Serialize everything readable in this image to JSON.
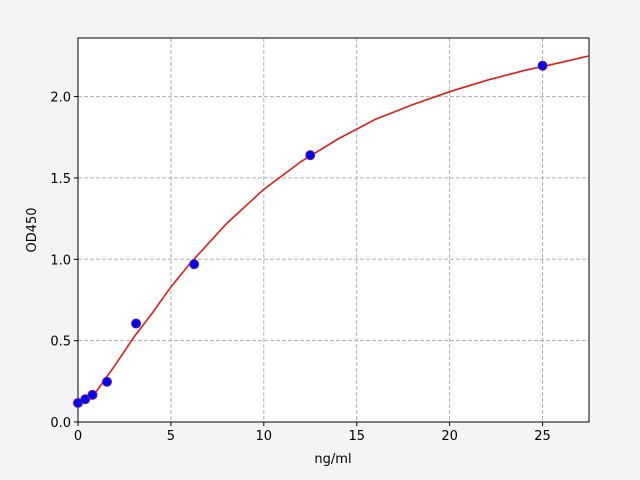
{
  "chart_data": {
    "type": "scatter",
    "xlabel": "ng/ml",
    "ylabel": "OD450",
    "xlim": [
      0,
      27.5
    ],
    "ylim": [
      0,
      2.36
    ],
    "xticks": [
      0,
      5,
      10,
      15,
      20,
      25
    ],
    "yticks": [
      {
        "value": 0,
        "label": "0.0"
      },
      {
        "value": 0.5,
        "label": "0.5"
      },
      {
        "value": 1,
        "label": "1.0"
      },
      {
        "value": 1.5,
        "label": "1.5"
      },
      {
        "value": 2,
        "label": "2.0"
      }
    ],
    "grid": true,
    "points": {
      "color": "#0000ee",
      "x": [
        0,
        0.39,
        0.78,
        1.56,
        3.125,
        6.25,
        12.5,
        25
      ],
      "values": [
        0.117,
        0.14,
        0.167,
        0.247,
        0.605,
        0.97,
        1.64,
        2.19
      ]
    },
    "fit": {
      "color": "#dd1c1c",
      "x": [
        0,
        1,
        2,
        3,
        4,
        5,
        6,
        8,
        10,
        12,
        14,
        16,
        18,
        20,
        22,
        24,
        26,
        27.5
      ],
      "values": [
        0.1,
        0.19,
        0.35,
        0.52,
        0.67,
        0.83,
        0.97,
        1.22,
        1.43,
        1.6,
        1.74,
        1.86,
        1.95,
        2.03,
        2.1,
        2.16,
        2.21,
        2.25
      ]
    }
  }
}
